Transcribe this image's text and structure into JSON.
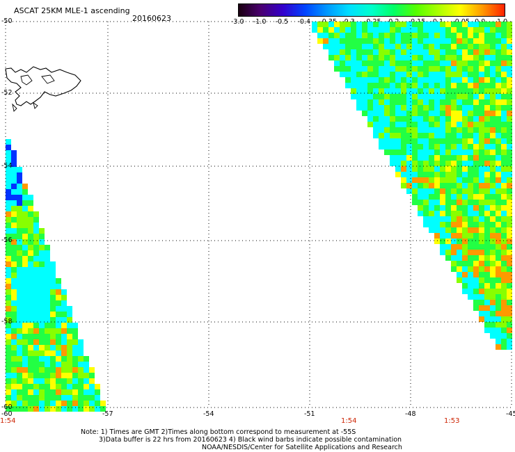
{
  "header": {
    "title": "ASCAT 25KM MLE-1 ascending",
    "date": "20160623"
  },
  "colorbar": {
    "labels": [
      "-3.0",
      "-1.0",
      "-0.5",
      "-0.4",
      "-0.35",
      "-0.3",
      "-0.25",
      "-0.2",
      "-0.15",
      "-0.1",
      "-0.05",
      "0.0",
      "1.0"
    ],
    "colors": [
      "#1a0010",
      "#4a0070",
      "#3300cc",
      "#0044ff",
      "#0099ff",
      "#00e0ff",
      "#00ffcc",
      "#00ff66",
      "#55ff00",
      "#aaff00",
      "#ffff00",
      "#ff9900",
      "#ff2200"
    ]
  },
  "map": {
    "lat_labels": [
      "-50",
      "-52",
      "-54",
      "-56",
      "-58",
      "-60"
    ],
    "lon_labels": [
      "-60",
      "-57",
      "-54",
      "-51",
      "-48",
      "-45"
    ],
    "time_labels": [
      "1:54",
      "1:54",
      "1:53"
    ],
    "colors": {
      "blue": "#0033ff",
      "cyan": "#00ffff",
      "green": "#22ff44",
      "lime": "#88ff00",
      "yellow": "#ffff00",
      "orange": "#ff9900"
    }
  },
  "notes": {
    "line1": "Note: 1) Times are GMT 2)Times along bottom correspond to measurement at -55S",
    "line2": "3)Data buffer is 22 hrs from 20160623 4) Black wind barbs indicate possible contamination",
    "line3": "NOAA/NESDIS/Center for Satellite Applications and Research"
  }
}
